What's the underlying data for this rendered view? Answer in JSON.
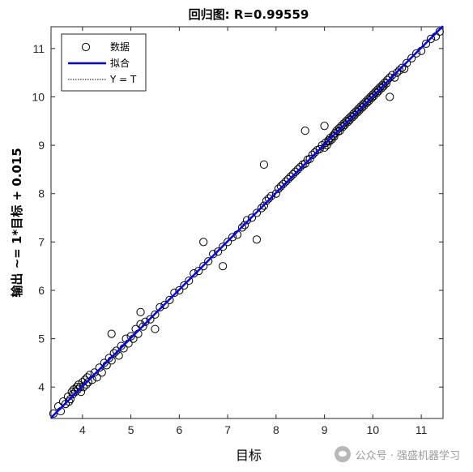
{
  "chart_data": {
    "type": "scatter",
    "title": "回归图: R=0.99559",
    "xlabel": "目标",
    "ylabel": "输出 ~= 1*目标 + 0.015",
    "xlim": [
      3.35,
      11.45
    ],
    "ylim": [
      3.35,
      11.45
    ],
    "xticks": [
      4,
      5,
      6,
      7,
      8,
      9,
      10,
      11
    ],
    "yticks": [
      4,
      5,
      6,
      7,
      8,
      9,
      10,
      11
    ],
    "grid": false,
    "legend_position": "top-left",
    "legend": [
      "数据",
      "拟合",
      "Y = T"
    ],
    "fit": {
      "slope": 1,
      "intercept": 0.015,
      "color": "#0000ff"
    },
    "series": [
      {
        "name": "数据",
        "marker": "open-circle",
        "color": "#000000",
        "x": [
          3.4,
          3.5,
          3.55,
          3.6,
          3.65,
          3.7,
          3.72,
          3.75,
          3.78,
          3.8,
          3.82,
          3.85,
          3.88,
          3.9,
          3.92,
          3.95,
          3.97,
          4.0,
          4.02,
          4.05,
          4.08,
          4.1,
          4.12,
          4.15,
          4.2,
          4.25,
          4.3,
          4.35,
          4.4,
          4.45,
          4.5,
          4.55,
          4.6,
          4.65,
          4.7,
          4.75,
          4.8,
          4.85,
          4.9,
          4.95,
          5.0,
          5.05,
          5.1,
          5.15,
          5.2,
          5.25,
          5.3,
          5.4,
          5.5,
          5.6,
          5.7,
          5.8,
          5.9,
          6.0,
          6.1,
          6.2,
          6.3,
          6.4,
          6.5,
          6.6,
          6.7,
          6.8,
          6.9,
          7.0,
          7.1,
          7.2,
          7.3,
          7.35,
          7.4,
          7.5,
          7.6,
          7.7,
          7.75,
          7.8,
          7.85,
          7.9,
          8.0,
          8.05,
          8.1,
          8.15,
          8.2,
          8.25,
          8.3,
          8.35,
          8.4,
          8.45,
          8.5,
          8.55,
          8.6,
          8.65,
          8.7,
          8.75,
          8.8,
          8.85,
          8.9,
          8.95,
          9.0,
          9.02,
          9.05,
          9.08,
          9.1,
          9.12,
          9.15,
          9.18,
          9.2,
          9.22,
          9.25,
          9.28,
          9.3,
          9.32,
          9.35,
          9.38,
          9.4,
          9.42,
          9.45,
          9.48,
          9.5,
          9.52,
          9.55,
          9.58,
          9.6,
          9.62,
          9.65,
          9.68,
          9.7,
          9.72,
          9.75,
          9.78,
          9.8,
          9.82,
          9.85,
          9.88,
          9.9,
          9.92,
          9.95,
          9.98,
          10.0,
          10.02,
          10.05,
          10.08,
          10.1,
          10.12,
          10.15,
          10.18,
          10.2,
          10.22,
          10.25,
          10.28,
          10.3,
          10.35,
          10.4,
          10.45,
          10.5,
          10.55,
          10.6,
          10.65,
          10.7,
          10.8,
          10.9,
          11.0,
          11.1,
          11.2,
          11.3,
          11.38,
          4.6,
          5.5,
          6.5,
          8.6,
          7.75,
          10.35,
          9.0,
          5.2,
          6.9,
          7.6
        ],
        "y": [
          3.45,
          3.6,
          3.5,
          3.7,
          3.65,
          3.8,
          3.7,
          3.75,
          3.9,
          3.85,
          3.95,
          3.9,
          4.0,
          3.95,
          4.05,
          4.0,
          3.9,
          4.1,
          4.0,
          4.15,
          4.05,
          4.2,
          4.1,
          4.25,
          4.15,
          4.3,
          4.2,
          4.4,
          4.3,
          4.5,
          4.45,
          4.6,
          4.55,
          4.7,
          4.75,
          4.65,
          4.85,
          4.8,
          5.0,
          4.9,
          5.05,
          5.0,
          5.2,
          5.1,
          5.3,
          5.25,
          5.35,
          5.4,
          5.5,
          5.65,
          5.7,
          5.8,
          5.95,
          6.0,
          6.1,
          6.2,
          6.35,
          6.4,
          6.5,
          6.6,
          6.75,
          6.8,
          6.9,
          7.0,
          7.1,
          7.15,
          7.3,
          7.35,
          7.45,
          7.5,
          7.6,
          7.7,
          7.75,
          7.85,
          7.9,
          7.95,
          8.0,
          8.1,
          8.15,
          8.2,
          8.25,
          8.3,
          8.35,
          8.4,
          8.45,
          8.5,
          8.55,
          8.6,
          8.62,
          8.7,
          8.72,
          8.8,
          8.85,
          8.9,
          8.92,
          9.0,
          8.95,
          9.05,
          9.0,
          9.1,
          9.08,
          9.15,
          9.12,
          9.2,
          9.18,
          9.25,
          9.3,
          9.28,
          9.35,
          9.3,
          9.4,
          9.38,
          9.45,
          9.42,
          9.5,
          9.48,
          9.55,
          9.52,
          9.6,
          9.58,
          9.65,
          9.62,
          9.7,
          9.68,
          9.75,
          9.72,
          9.8,
          9.78,
          9.85,
          9.82,
          9.9,
          9.88,
          9.95,
          9.92,
          10.0,
          9.98,
          10.05,
          10.02,
          10.1,
          10.08,
          10.15,
          10.12,
          10.2,
          10.18,
          10.25,
          10.22,
          10.3,
          10.28,
          10.35,
          10.4,
          10.45,
          10.4,
          10.5,
          10.55,
          10.6,
          10.58,
          10.7,
          10.8,
          10.9,
          10.95,
          11.1,
          11.2,
          11.25,
          11.35,
          5.1,
          5.2,
          7.0,
          9.3,
          8.6,
          10.0,
          9.4,
          5.55,
          6.5,
          7.05
        ]
      }
    ]
  },
  "watermark": {
    "text": "公众号 · 强盛机器学习"
  }
}
